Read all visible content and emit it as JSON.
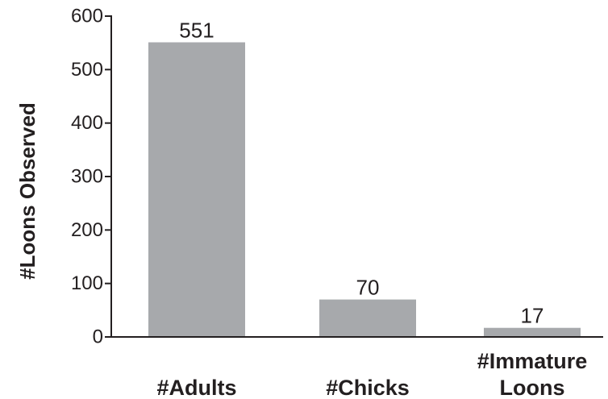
{
  "chart_data": {
    "type": "bar",
    "categories": [
      "#Adults",
      "#Chicks",
      "#Immature Loons"
    ],
    "category_lines": [
      [
        "#Adults"
      ],
      [
        "#Chicks"
      ],
      [
        "#Immature",
        "Loons"
      ]
    ],
    "values": [
      551,
      70,
      17
    ],
    "data_labels": [
      "551",
      "70",
      "17"
    ],
    "title": "",
    "xlabel": "",
    "ylabel": "#Loons Observed",
    "ylim": [
      0,
      600
    ],
    "yticks": [
      0,
      100,
      200,
      300,
      400,
      500,
      600
    ],
    "grid": false,
    "legend": "none",
    "colors": {
      "bar": "#a7a9ac",
      "axis": "#231f20",
      "text": "#231f20"
    }
  }
}
